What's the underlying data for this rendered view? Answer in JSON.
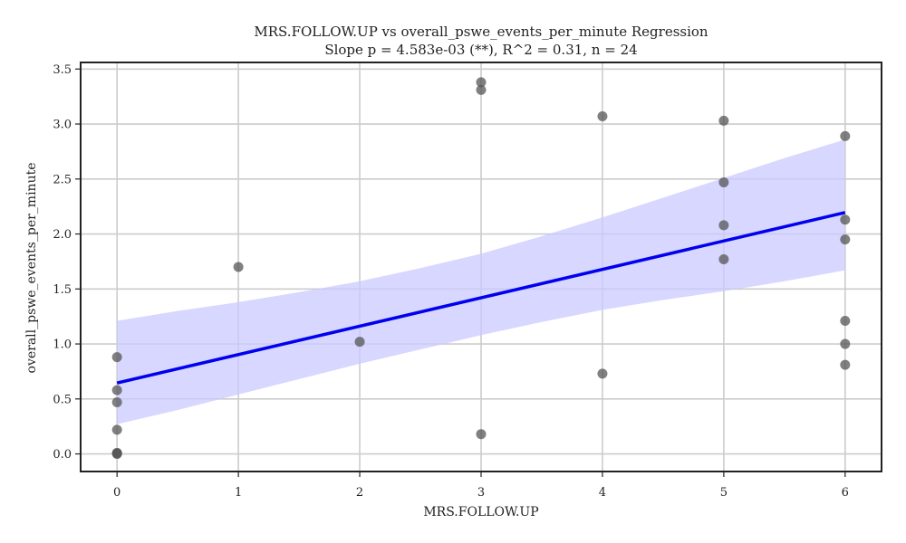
{
  "chart_data": {
    "type": "scatter",
    "title": "MRS.FOLLOW.UP vs overall_pswe_events_per_minute Regression",
    "subtitle": "Slope p = 4.583e-03 (**), R^2 = 0.31, n = 24",
    "xlabel": "MRS.FOLLOW.UP",
    "ylabel": "overall_pswe_events_per_minute",
    "xlim": [
      -0.3,
      6.3
    ],
    "ylim": [
      -0.16,
      3.56
    ],
    "x_ticks": [
      0,
      1,
      2,
      3,
      4,
      5,
      6
    ],
    "y_ticks": [
      0.0,
      0.5,
      1.0,
      1.5,
      2.0,
      2.5,
      3.0,
      3.5
    ],
    "x_tick_labels": [
      "0",
      "1",
      "2",
      "3",
      "4",
      "5",
      "6"
    ],
    "y_tick_labels": [
      "0.0",
      "0.5",
      "1.0",
      "1.5",
      "2.0",
      "2.5",
      "3.0",
      "3.5"
    ],
    "grid": true,
    "points": [
      {
        "x": 0,
        "y": 0.88
      },
      {
        "x": 0,
        "y": 0.58
      },
      {
        "x": 0,
        "y": 0.47
      },
      {
        "x": 0,
        "y": 0.22
      },
      {
        "x": 0,
        "y": 0.01
      },
      {
        "x": 0,
        "y": 0.005
      },
      {
        "x": 0,
        "y": 0.0
      },
      {
        "x": 1,
        "y": 1.7
      },
      {
        "x": 2,
        "y": 1.02
      },
      {
        "x": 3,
        "y": 3.38
      },
      {
        "x": 3,
        "y": 3.31
      },
      {
        "x": 3,
        "y": 0.18
      },
      {
        "x": 4,
        "y": 3.07
      },
      {
        "x": 4,
        "y": 0.73
      },
      {
        "x": 5,
        "y": 3.03
      },
      {
        "x": 5,
        "y": 2.47
      },
      {
        "x": 5,
        "y": 2.08
      },
      {
        "x": 5,
        "y": 1.77
      },
      {
        "x": 6,
        "y": 2.89
      },
      {
        "x": 6,
        "y": 2.13
      },
      {
        "x": 6,
        "y": 1.95
      },
      {
        "x": 6,
        "y": 1.21
      },
      {
        "x": 6,
        "y": 1.0
      },
      {
        "x": 6,
        "y": 0.81
      }
    ],
    "regression_line": {
      "x0": 0,
      "y0": 0.645,
      "x1": 6,
      "y1": 2.195
    },
    "confidence_band": {
      "x": [
        0,
        0.5,
        1,
        1.5,
        2,
        2.5,
        3,
        3.5,
        4,
        4.5,
        5,
        5.5,
        6
      ],
      "upper": [
        1.21,
        1.3,
        1.38,
        1.47,
        1.57,
        1.69,
        1.82,
        1.98,
        2.15,
        2.33,
        2.51,
        2.69,
        2.86
      ],
      "lower": [
        0.27,
        0.4,
        0.54,
        0.68,
        0.82,
        0.95,
        1.08,
        1.2,
        1.31,
        1.4,
        1.48,
        1.57,
        1.67
      ]
    },
    "colors": {
      "points": "#555555",
      "regression_line": "#0000ee",
      "band": "#c9c9ff",
      "grid": "#cccccc",
      "frame": "#222222"
    }
  }
}
